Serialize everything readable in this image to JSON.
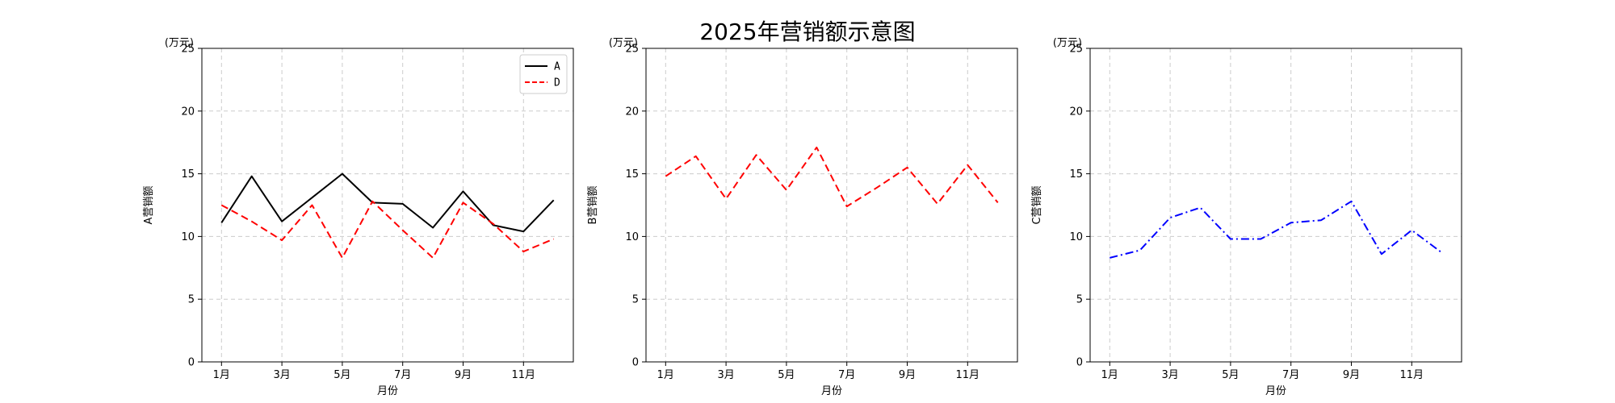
{
  "title": "2025年营销额示意图",
  "chart_data": [
    {
      "type": "line",
      "unit_label": "(万元)",
      "xlabel": "月份",
      "ylabel": "A营销额",
      "ylim": [
        0,
        25
      ],
      "yticks": [
        0,
        5,
        10,
        15,
        20,
        25
      ],
      "x": [
        1,
        2,
        3,
        4,
        5,
        6,
        7,
        8,
        9,
        10,
        11,
        12
      ],
      "xticks": [
        1,
        3,
        5,
        7,
        9,
        11
      ],
      "xtick_labels": [
        "1月",
        "3月",
        "5月",
        "7月",
        "9月",
        "11月"
      ],
      "grid": true,
      "legend": "top-right",
      "series": [
        {
          "name": "A",
          "values": [
            11.1,
            14.8,
            11.2,
            13.1,
            15.0,
            12.7,
            12.6,
            10.7,
            13.6,
            10.9,
            10.4,
            12.9
          ],
          "color": "#000000",
          "dash": "solid"
        },
        {
          "name": "D",
          "values": [
            12.5,
            11.2,
            9.7,
            12.5,
            8.3,
            12.8,
            10.5,
            8.3,
            12.7,
            11.0,
            8.8,
            9.8
          ],
          "color": "#ff0000",
          "dash": "dashed"
        }
      ]
    },
    {
      "type": "line",
      "unit_label": "(万元)",
      "xlabel": "月份",
      "ylabel": "B营销额",
      "ylim": [
        0,
        25
      ],
      "yticks": [
        0,
        5,
        10,
        15,
        20,
        25
      ],
      "x": [
        1,
        2,
        3,
        4,
        5,
        6,
        7,
        8,
        9,
        10,
        11,
        12
      ],
      "xticks": [
        1,
        3,
        5,
        7,
        9,
        11
      ],
      "xtick_labels": [
        "1月",
        "3月",
        "5月",
        "7月",
        "9月",
        "11月"
      ],
      "grid": true,
      "series": [
        {
          "values": [
            14.8,
            16.4,
            13.0,
            16.5,
            13.7,
            17.1,
            12.4,
            13.9,
            15.5,
            12.6,
            15.7,
            12.7
          ],
          "color": "#ff0000",
          "dash": "dashed"
        }
      ]
    },
    {
      "type": "line",
      "unit_label": "(万元)",
      "xlabel": "月份",
      "ylabel": "C营销额",
      "ylim": [
        0,
        25
      ],
      "yticks": [
        0,
        5,
        10,
        15,
        20,
        25
      ],
      "x": [
        1,
        2,
        3,
        4,
        5,
        6,
        7,
        8,
        9,
        10,
        11,
        12
      ],
      "xticks": [
        1,
        3,
        5,
        7,
        9,
        11
      ],
      "xtick_labels": [
        "1月",
        "3月",
        "5月",
        "7月",
        "9月",
        "11月"
      ],
      "grid": true,
      "series": [
        {
          "values": [
            8.3,
            8.9,
            11.5,
            12.3,
            9.8,
            9.8,
            11.1,
            11.3,
            12.8,
            8.6,
            10.5,
            8.7
          ],
          "color": "#0000ff",
          "dash": "dashdot"
        }
      ]
    }
  ]
}
